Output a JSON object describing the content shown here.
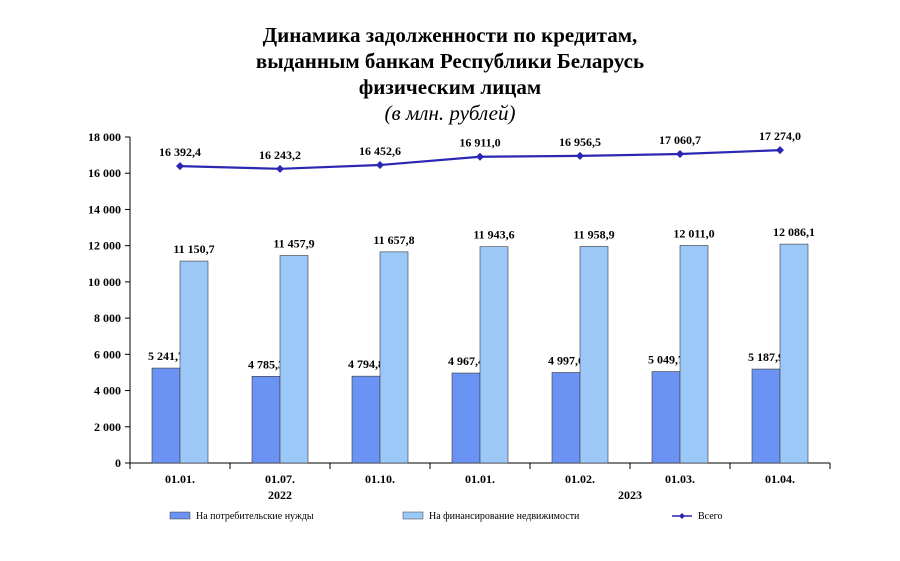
{
  "chart_data": {
    "type": "bar",
    "title_lines": [
      "Динамика задолженности по кредитам,",
      "выданным банкам Республики Беларусь",
      "физическим лицам"
    ],
    "subtitle": "(в млн. рублей)",
    "categories": [
      "01.01.",
      "01.07.",
      "01.10.",
      "01.01.",
      "01.02.",
      "01.03.",
      "01.04."
    ],
    "year_groups": [
      {
        "label": "2022",
        "from": 0,
        "to": 2
      },
      {
        "label": "2023",
        "from": 3,
        "to": 6
      }
    ],
    "ylim": [
      0,
      18000
    ],
    "yticks": [
      0,
      2000,
      4000,
      6000,
      8000,
      10000,
      12000,
      14000,
      16000,
      18000
    ],
    "ytick_labels": [
      "0",
      "2 000",
      "4 000",
      "6 000",
      "8 000",
      "10 000",
      "12 000",
      "14 000",
      "16 000",
      "18 000"
    ],
    "grid": false,
    "legend_position": "bottom",
    "series": [
      {
        "name": "На потребительские нужды",
        "type": "bar",
        "color": "#6b93f3",
        "values": [
          5241.7,
          4785.3,
          4794.8,
          4967.4,
          4997.6,
          5049.7,
          5187.9
        ],
        "labels": [
          "5 241,7",
          "4 785,3",
          "4 794,8",
          "4 967,4",
          "4 997,6",
          "5 049,7",
          "5 187,9"
        ]
      },
      {
        "name": "На финансирование недвижимости",
        "type": "bar",
        "color": "#9cc8f7",
        "values": [
          11150.7,
          11457.9,
          11657.8,
          11943.6,
          11958.9,
          12011.0,
          12086.1
        ],
        "labels": [
          "11 150,7",
          "11 457,9",
          "11 657,8",
          "11 943,6",
          "11 958,9",
          "12 011,0",
          "12 086,1"
        ]
      },
      {
        "name": "Всего",
        "type": "line",
        "color": "#2b27b3",
        "values": [
          16392.4,
          16243.2,
          16452.6,
          16911.0,
          16956.5,
          17060.7,
          17274.0
        ],
        "labels": [
          "16 392,4",
          "16 243,2",
          "16 452,6",
          "16 911,0",
          "16 956,5",
          "17 060,7",
          "17 274,0"
        ]
      }
    ]
  }
}
